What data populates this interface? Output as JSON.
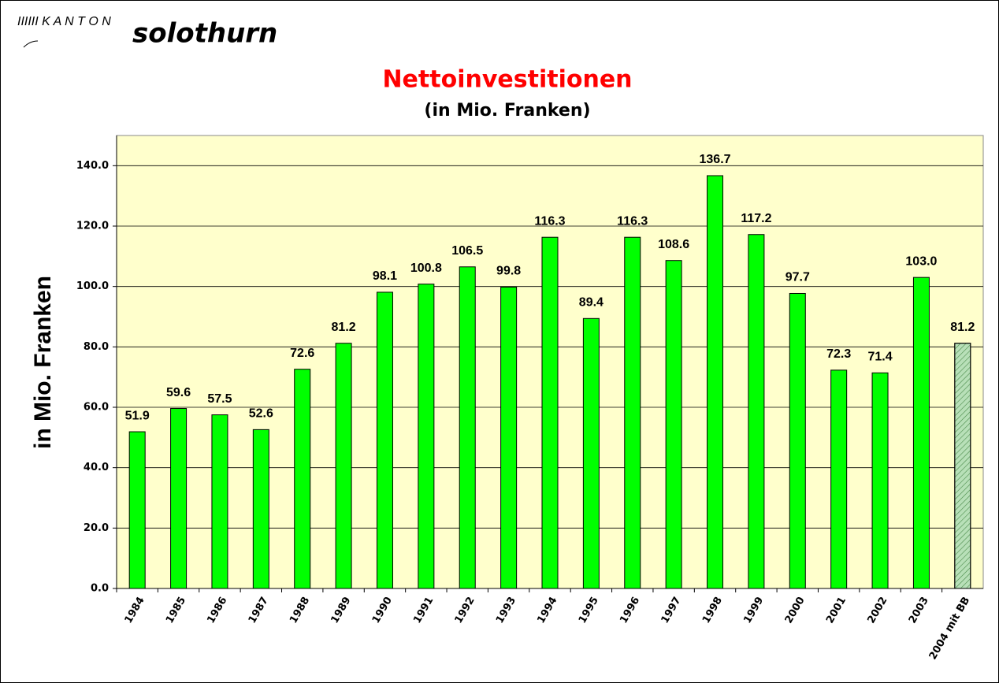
{
  "logo": {
    "prefix": "IIIIII K A N T O N",
    "name": "solothurn"
  },
  "chart_data": {
    "type": "bar",
    "title": "Nettoinvestitionen",
    "subtitle": "(in Mio. Franken)",
    "y_label": "in Mio. Franken",
    "categories": [
      "1984",
      "1985",
      "1986",
      "1987",
      "1988",
      "1989",
      "1990",
      "1991",
      "1992",
      "1993",
      "1994",
      "1995",
      "1996",
      "1997",
      "1998",
      "1999",
      "2000",
      "2001",
      "2002",
      "2003",
      "2004 mit BB"
    ],
    "values": [
      51.9,
      59.6,
      57.5,
      52.6,
      72.6,
      81.2,
      98.1,
      100.8,
      106.5,
      99.8,
      116.3,
      89.4,
      116.3,
      108.6,
      136.7,
      117.2,
      97.7,
      72.3,
      71.4,
      103.0,
      81.2
    ],
    "value_labels": [
      "51.9",
      "59.6",
      "57.5",
      "52.6",
      "72.6",
      "81.2",
      "98.1",
      "100.8",
      "106.5",
      "99.8",
      "116.3",
      "89.4",
      "116.3",
      "108.6",
      "136.7",
      "117.2",
      "97.7",
      "72.3",
      "71.4",
      "103.0",
      "81.2"
    ],
    "color": "#00ff00",
    "hatched": [
      false,
      false,
      false,
      false,
      false,
      false,
      false,
      false,
      false,
      false,
      false,
      false,
      false,
      false,
      false,
      false,
      false,
      false,
      false,
      false,
      true
    ],
    "hatch_color": "#b8e0b8",
    "plot_background": "#ffffcc",
    "ylim": [
      0,
      150
    ],
    "yticks": [
      {
        "value": 0,
        "label": "0.0"
      },
      {
        "value": 20,
        "label": "20.0"
      },
      {
        "value": 40,
        "label": "40.0"
      },
      {
        "value": 60,
        "label": "60.0"
      },
      {
        "value": 80,
        "label": "80.0"
      },
      {
        "value": 100,
        "label": "100.0"
      },
      {
        "value": 120,
        "label": "120.0"
      },
      {
        "value": 140,
        "label": "140.0"
      }
    ],
    "grid": true
  }
}
